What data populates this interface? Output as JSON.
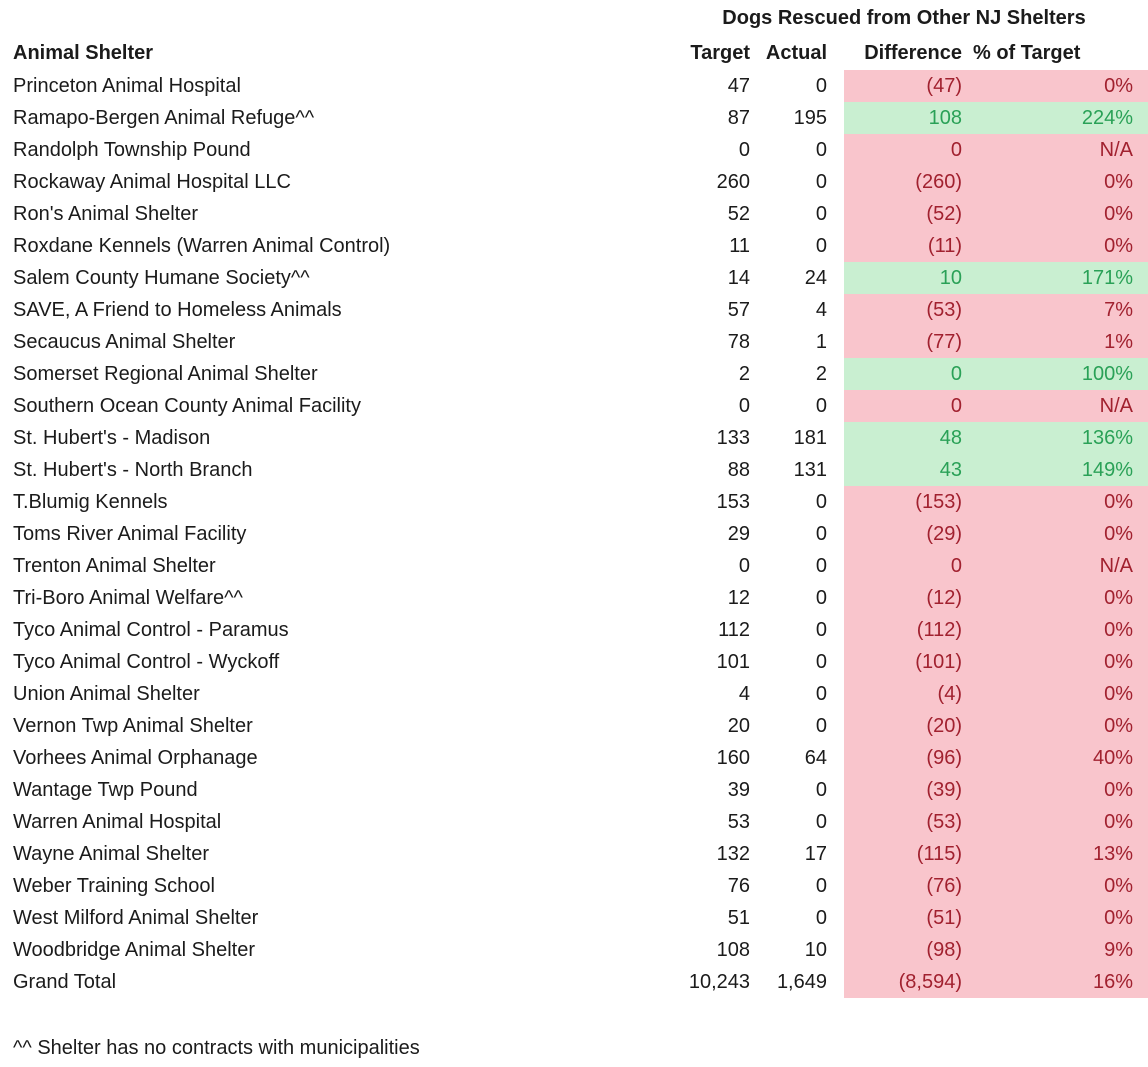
{
  "title": "Dogs Rescued from Other NJ Shelters",
  "header": {
    "shelter": "Animal Shelter",
    "target": "Target",
    "actual": "Actual",
    "difference": "Difference",
    "pct_of_target": "% of Target"
  },
  "rows": [
    {
      "shelter": "Princeton Animal Hospital",
      "target": "47",
      "actual": "0",
      "difference": "(47)",
      "pct_of_target": "0%",
      "status": "negative"
    },
    {
      "shelter": "Ramapo-Bergen Animal Refuge^^",
      "target": "87",
      "actual": "195",
      "difference": "108",
      "pct_of_target": "224%",
      "status": "positive"
    },
    {
      "shelter": "Randolph Township Pound",
      "target": "0",
      "actual": "0",
      "difference": "0",
      "pct_of_target": "N/A",
      "status": "negative"
    },
    {
      "shelter": "Rockaway Animal Hospital LLC",
      "target": "260",
      "actual": "0",
      "difference": "(260)",
      "pct_of_target": "0%",
      "status": "negative"
    },
    {
      "shelter": "Ron's Animal Shelter",
      "target": "52",
      "actual": "0",
      "difference": "(52)",
      "pct_of_target": "0%",
      "status": "negative"
    },
    {
      "shelter": "Roxdane Kennels (Warren Animal Control)",
      "target": "11",
      "actual": "0",
      "difference": "(11)",
      "pct_of_target": "0%",
      "status": "negative"
    },
    {
      "shelter": "Salem County Humane Society^^",
      "target": "14",
      "actual": "24",
      "difference": "10",
      "pct_of_target": "171%",
      "status": "positive"
    },
    {
      "shelter": "SAVE, A Friend to Homeless Animals",
      "target": "57",
      "actual": "4",
      "difference": "(53)",
      "pct_of_target": "7%",
      "status": "negative"
    },
    {
      "shelter": "Secaucus Animal Shelter",
      "target": "78",
      "actual": "1",
      "difference": "(77)",
      "pct_of_target": "1%",
      "status": "negative"
    },
    {
      "shelter": "Somerset Regional Animal Shelter",
      "target": "2",
      "actual": "2",
      "difference": "0",
      "pct_of_target": "100%",
      "status": "positive"
    },
    {
      "shelter": "Southern Ocean County Animal Facility",
      "target": "0",
      "actual": "0",
      "difference": "0",
      "pct_of_target": "N/A",
      "status": "negative"
    },
    {
      "shelter": "St. Hubert's - Madison",
      "target": "133",
      "actual": "181",
      "difference": "48",
      "pct_of_target": "136%",
      "status": "positive"
    },
    {
      "shelter": "St. Hubert's - North Branch",
      "target": "88",
      "actual": "131",
      "difference": "43",
      "pct_of_target": "149%",
      "status": "positive"
    },
    {
      "shelter": "T.Blumig Kennels",
      "target": "153",
      "actual": "0",
      "difference": "(153)",
      "pct_of_target": "0%",
      "status": "negative"
    },
    {
      "shelter": "Toms River Animal Facility",
      "target": "29",
      "actual": "0",
      "difference": "(29)",
      "pct_of_target": "0%",
      "status": "negative"
    },
    {
      "shelter": "Trenton Animal Shelter",
      "target": "0",
      "actual": "0",
      "difference": "0",
      "pct_of_target": "N/A",
      "status": "negative"
    },
    {
      "shelter": "Tri-Boro Animal Welfare^^",
      "target": "12",
      "actual": "0",
      "difference": "(12)",
      "pct_of_target": "0%",
      "status": "negative"
    },
    {
      "shelter": "Tyco Animal Control - Paramus",
      "target": "112",
      "actual": "0",
      "difference": "(112)",
      "pct_of_target": "0%",
      "status": "negative"
    },
    {
      "shelter": "Tyco Animal Control - Wyckoff",
      "target": "101",
      "actual": "0",
      "difference": "(101)",
      "pct_of_target": "0%",
      "status": "negative"
    },
    {
      "shelter": "Union Animal Shelter",
      "target": "4",
      "actual": "0",
      "difference": "(4)",
      "pct_of_target": "0%",
      "status": "negative"
    },
    {
      "shelter": "Vernon Twp Animal Shelter",
      "target": "20",
      "actual": "0",
      "difference": "(20)",
      "pct_of_target": "0%",
      "status": "negative"
    },
    {
      "shelter": "Vorhees Animal Orphanage",
      "target": "160",
      "actual": "64",
      "difference": "(96)",
      "pct_of_target": "40%",
      "status": "negative"
    },
    {
      "shelter": "Wantage Twp Pound",
      "target": "39",
      "actual": "0",
      "difference": "(39)",
      "pct_of_target": "0%",
      "status": "negative"
    },
    {
      "shelter": "Warren Animal Hospital",
      "target": "53",
      "actual": "0",
      "difference": "(53)",
      "pct_of_target": "0%",
      "status": "negative"
    },
    {
      "shelter": "Wayne Animal Shelter",
      "target": "132",
      "actual": "17",
      "difference": "(115)",
      "pct_of_target": "13%",
      "status": "negative"
    },
    {
      "shelter": "Weber Training School",
      "target": "76",
      "actual": "0",
      "difference": "(76)",
      "pct_of_target": "0%",
      "status": "negative"
    },
    {
      "shelter": "West Milford Animal Shelter",
      "target": "51",
      "actual": "0",
      "difference": "(51)",
      "pct_of_target": "0%",
      "status": "negative"
    },
    {
      "shelter": "Woodbridge Animal Shelter",
      "target": "108",
      "actual": "10",
      "difference": "(98)",
      "pct_of_target": "9%",
      "status": "negative"
    }
  ],
  "grand_total": {
    "shelter": "Grand Total",
    "target": "10,243",
    "actual": "1,649",
    "difference": "(8,594)",
    "pct_of_target": "16%",
    "status": "negative"
  },
  "footnote": "^^ Shelter has no contracts with municipalities",
  "colors": {
    "positive_bg": "#C9EFD1",
    "positive_text": "#2AA157",
    "negative_bg": "#F9C5CC",
    "negative_text": "#A1212F",
    "text": "#1B1B1B",
    "background": "#FFFFFF"
  }
}
